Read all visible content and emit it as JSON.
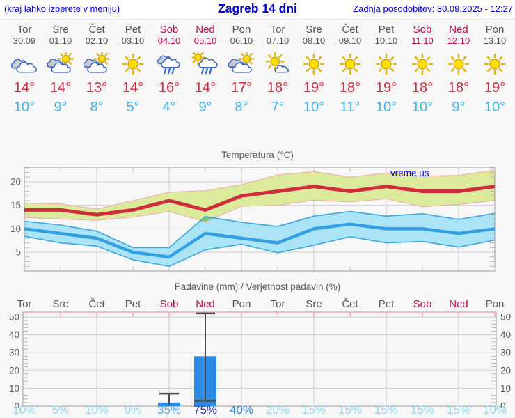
{
  "header": {
    "left_note": "(kraj lahko izberete v meniju)",
    "title": "Zagreb 14 dni",
    "updated": "Zadnja posodobitev: 30.09.2025 - 12:27"
  },
  "colors": {
    "header_text": "#0000dd",
    "day_text": "#555555",
    "weekend_text": "#c00d4a",
    "high_temp": "#d32b3c",
    "low_temp": "#42b2ec",
    "max_line": "#d02c3e",
    "min_line": "#33a0e2",
    "max_band_fill": "#dcea9b",
    "max_band_edge": "#f0a8a8",
    "min_band_fill": "#abe3f7",
    "min_band_edge": "#3aa6e2",
    "band_overlap": "#7cc96f",
    "precip_bar": "#2b8be6",
    "whisker": "#4a4a4a",
    "grid": "#cccccc",
    "axis": "#999999",
    "minor_tick": "#b8b8b8",
    "pink_axis": "#eba6b4",
    "prob_low": "#8bd9f6",
    "prob_mid35": "#4fa9ee",
    "prob_mid40": "#2f86e2",
    "prob_high": "#2531c8"
  },
  "days": [
    {
      "name": "Tor",
      "date": "30.09",
      "weekend": false,
      "icon": "cloudy",
      "high": 14,
      "low": 10,
      "prob": "10%",
      "prob_color": "#8bd9f6"
    },
    {
      "name": "Sre",
      "date": "01.10",
      "weekend": false,
      "icon": "partly-cloudy",
      "high": 14,
      "low": 9,
      "prob": "5%",
      "prob_color": "#8bd9f6"
    },
    {
      "name": "Čet",
      "date": "02.10",
      "weekend": false,
      "icon": "partly-cloudy",
      "high": 13,
      "low": 8,
      "prob": "10%",
      "prob_color": "#8bd9f6"
    },
    {
      "name": "Pet",
      "date": "03.10",
      "weekend": false,
      "icon": "sunny",
      "high": 14,
      "low": 5,
      "prob": "0%",
      "prob_color": "#8bd9f6"
    },
    {
      "name": "Sob",
      "date": "04.10",
      "weekend": true,
      "icon": "rain",
      "high": 16,
      "low": 4,
      "prob": "35%",
      "prob_color": "#4fa9ee"
    },
    {
      "name": "Ned",
      "date": "05.10",
      "weekend": true,
      "icon": "sun-rain",
      "high": 14,
      "low": 9,
      "prob": "75%",
      "prob_color": "#2531c8"
    },
    {
      "name": "Pon",
      "date": "06.10",
      "weekend": false,
      "icon": "partly-cloudy",
      "high": 17,
      "low": 8,
      "prob": "40%",
      "prob_color": "#2f86e2"
    },
    {
      "name": "Tor",
      "date": "07.10",
      "weekend": false,
      "icon": "mostly-sunny",
      "high": 18,
      "low": 7,
      "prob": "20%",
      "prob_color": "#8bd9f6"
    },
    {
      "name": "Sre",
      "date": "08.10",
      "weekend": false,
      "icon": "sunny",
      "high": 19,
      "low": 10,
      "prob": "15%",
      "prob_color": "#8bd9f6"
    },
    {
      "name": "Čet",
      "date": "09.10",
      "weekend": false,
      "icon": "sunny",
      "high": 18,
      "low": 11,
      "prob": "15%",
      "prob_color": "#8bd9f6"
    },
    {
      "name": "Pet",
      "date": "10.10",
      "weekend": false,
      "icon": "sunny",
      "high": 19,
      "low": 10,
      "prob": "15%",
      "prob_color": "#8bd9f6"
    },
    {
      "name": "Sob",
      "date": "11.10",
      "weekend": true,
      "icon": "sunny",
      "high": 18,
      "low": 10,
      "prob": "15%",
      "prob_color": "#8bd9f6"
    },
    {
      "name": "Ned",
      "date": "12.10",
      "weekend": true,
      "icon": "sunny",
      "high": 18,
      "low": 9,
      "prob": "15%",
      "prob_color": "#8bd9f6"
    },
    {
      "name": "Pon",
      "date": "13.10",
      "weekend": false,
      "icon": "sunny",
      "high": 19,
      "low": 10,
      "prob": "10%",
      "prob_color": "#8bd9f6"
    }
  ],
  "chart_data": [
    {
      "type": "area",
      "title": "Temperatura (°C)",
      "watermark": "vreme.us",
      "categories": [
        "Tor",
        "Sre",
        "Čet",
        "Pet",
        "Sob",
        "Ned",
        "Pon",
        "Tor",
        "Sre",
        "Čet",
        "Pet",
        "Sob",
        "Ned",
        "Pon"
      ],
      "series": [
        {
          "name": "max-temp",
          "values": [
            14,
            14,
            13,
            14,
            16,
            14,
            17,
            18,
            19,
            18,
            19,
            18,
            18,
            19
          ]
        },
        {
          "name": "min-temp",
          "values": [
            10,
            9,
            8,
            5,
            4,
            9,
            8,
            7,
            10,
            11,
            10,
            10,
            9,
            10
          ]
        }
      ],
      "bands": [
        {
          "name": "max-range",
          "upper": [
            15.5,
            15.3,
            14.2,
            16.0,
            17.8,
            18.1,
            19.4,
            21.5,
            22.2,
            21.0,
            21.9,
            21.2,
            21.4,
            22.5
          ],
          "lower": [
            12.4,
            12.1,
            11.8,
            12.5,
            13.7,
            11.5,
            14.8,
            15.0,
            16.1,
            15.7,
            16.4,
            14.7,
            15.2,
            16.0
          ]
        },
        {
          "name": "min-range",
          "upper": [
            11.6,
            10.8,
            9.5,
            6.0,
            6.0,
            12.6,
            11.4,
            10.5,
            12.7,
            13.7,
            12.7,
            13.2,
            12.0,
            13.3
          ],
          "lower": [
            8.4,
            7.0,
            6.3,
            3.4,
            2.0,
            5.5,
            6.7,
            4.9,
            6.5,
            8.3,
            7.0,
            7.3,
            6.1,
            7.6
          ]
        }
      ],
      "ylim": [
        1.0,
        23.1
      ],
      "yticks": [
        5,
        10,
        15,
        20
      ],
      "grid": true,
      "legend": "none"
    },
    {
      "type": "bar",
      "title": "Padavine (mm) / Verjetnost padavin (%)",
      "categories": [
        "Tor",
        "Sre",
        "Čet",
        "Pet",
        "Sob",
        "Ned",
        "Pon",
        "Tor",
        "Sre",
        "Čet",
        "Pet",
        "Sob",
        "Ned",
        "Pon"
      ],
      "values": [
        0,
        0,
        0,
        0,
        2,
        28,
        0,
        0,
        0,
        0,
        0,
        0,
        0,
        0
      ],
      "whisker_low": [
        null,
        null,
        null,
        null,
        0,
        3,
        null,
        null,
        null,
        null,
        null,
        null,
        null,
        null
      ],
      "whisker_high": [
        null,
        null,
        null,
        null,
        7,
        52,
        null,
        null,
        null,
        null,
        null,
        null,
        null,
        null
      ],
      "probabilities": [
        "10%",
        "5%",
        "10%",
        "0%",
        "35%",
        "75%",
        "40%",
        "20%",
        "15%",
        "15%",
        "15%",
        "15%",
        "15%",
        "10%"
      ],
      "ylim": [
        0,
        52.7
      ],
      "yticks": [
        0,
        10,
        20,
        30,
        40,
        50
      ],
      "grid": true,
      "legend": "none"
    }
  ]
}
